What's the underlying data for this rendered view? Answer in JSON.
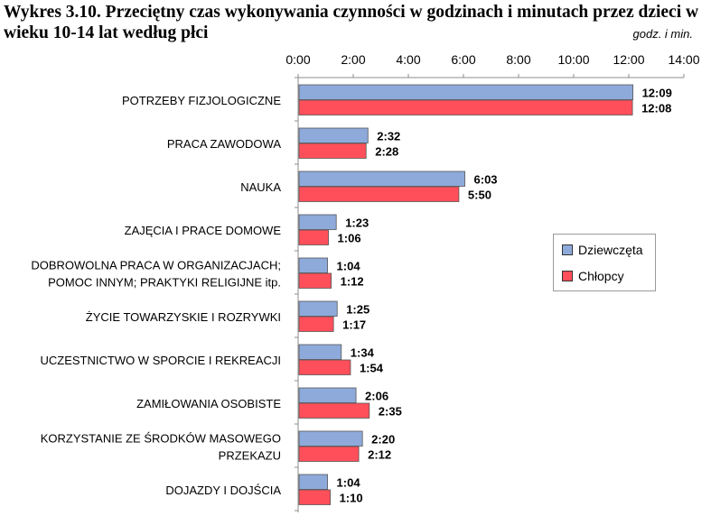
{
  "header": {
    "title": "Wykres 3.10. Przeciętny czas wykonywania czynności w godzinach i minutach przez dzieci w wieku 10-14 lat według płci",
    "unit": "godz. i min."
  },
  "legend": {
    "items": [
      {
        "label": "Dziewczęta",
        "color": "#8eaadb"
      },
      {
        "label": "Chłopcy",
        "color": "#ff4f5b"
      }
    ]
  },
  "chart_data": {
    "type": "bar",
    "orientation": "horizontal",
    "x_ticks": [
      "0:00",
      "2:00",
      "4:00",
      "6:00",
      "8:00",
      "10:00",
      "12:00",
      "14:00"
    ],
    "xlim": [
      0,
      840
    ],
    "x_unit": "minutes",
    "grid": false,
    "legend_position": "right",
    "categories": [
      [
        "POTRZEBY FIZJOLOGICZNE"
      ],
      [
        "PRACA ZAWODOWA"
      ],
      [
        "NAUKA"
      ],
      [
        "ZAJĘCIA I PRACE DOMOWE"
      ],
      [
        "DOBROWOLNA PRACA W ORGANIZACJACH;",
        "POMOC INNYM; PRAKTYKI RELIGIJNE  itp."
      ],
      [
        "ŻYCIE TOWARZYSKIE I ROZRYWKI"
      ],
      [
        "UCZESTNICTWO W SPORCIE I REKREACJI"
      ],
      [
        "ZAMIŁOWANIA OSOBISTE"
      ],
      [
        "KORZYSTANIE ZE ŚRODKÓW MASOWEGO",
        "PRZEKAZU"
      ],
      [
        "DOJAZDY I DOJŚCIA"
      ]
    ],
    "series": [
      {
        "name": "Dziewczęta",
        "color": "#8eaadb",
        "values": [
          729,
          152,
          363,
          83,
          64,
          85,
          94,
          126,
          140,
          64
        ],
        "labels": [
          "12:09",
          "2:32",
          "6:03",
          "1:23",
          "1:04",
          "1:25",
          "1:34",
          "2:06",
          "2:20",
          "1:04"
        ]
      },
      {
        "name": "Chłopcy",
        "color": "#ff4f5b",
        "values": [
          728,
          148,
          350,
          66,
          72,
          77,
          114,
          155,
          132,
          70
        ],
        "labels": [
          "12:08",
          "2:28",
          "5:50",
          "1:06",
          "1:12",
          "1:17",
          "1:54",
          "2:35",
          "2:12",
          "1:10"
        ]
      }
    ]
  }
}
